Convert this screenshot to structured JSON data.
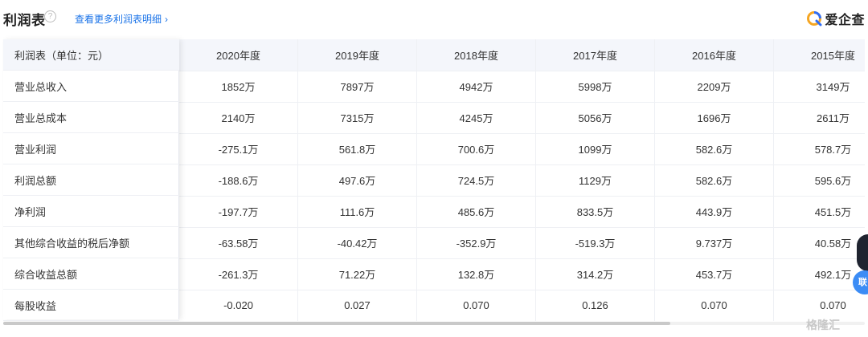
{
  "header": {
    "title": "利润表",
    "help_icon": "question-circle-icon",
    "more_link": "查看更多利润表明细",
    "chevron": "chevron-right-icon",
    "brand_text": "爱企查"
  },
  "table": {
    "header_label": "利润表（单位：元）",
    "columns": [
      "2020年度",
      "2019年度",
      "2018年度",
      "2017年度",
      "2016年度",
      "2015年度"
    ],
    "rows": [
      {
        "label": "营业总收入",
        "values": [
          "1852万",
          "7897万",
          "4942万",
          "5998万",
          "2209万",
          "3149万"
        ]
      },
      {
        "label": "营业总成本",
        "values": [
          "2140万",
          "7315万",
          "4245万",
          "5056万",
          "1696万",
          "2611万"
        ]
      },
      {
        "label": "营业利润",
        "values": [
          "-275.1万",
          "561.8万",
          "700.6万",
          "1099万",
          "582.6万",
          "578.7万"
        ]
      },
      {
        "label": "利润总额",
        "values": [
          "-188.6万",
          "497.6万",
          "724.5万",
          "1129万",
          "582.6万",
          "595.6万"
        ]
      },
      {
        "label": "净利润",
        "values": [
          "-197.7万",
          "111.6万",
          "485.6万",
          "833.5万",
          "443.9万",
          "451.5万"
        ]
      },
      {
        "label": "其他综合收益的税后净额",
        "values": [
          "-63.58万",
          "-40.42万",
          "-352.9万",
          "-519.3万",
          "9.737万",
          "40.58万"
        ]
      },
      {
        "label": "综合收益总额",
        "values": [
          "-261.3万",
          "71.22万",
          "132.8万",
          "314.2万",
          "453.7万",
          "492.1万"
        ]
      },
      {
        "label": "每股收益",
        "values": [
          "-0.020",
          "0.027",
          "0.070",
          "0.126",
          "0.070",
          "0.070"
        ]
      }
    ]
  },
  "float_button": "联",
  "watermark": "格隆汇",
  "colors": {
    "accent": "#1a73e8",
    "header_bg": "#f4f6fb",
    "brand_orange": "#f5a623",
    "brand_blue": "#2f6df6"
  }
}
